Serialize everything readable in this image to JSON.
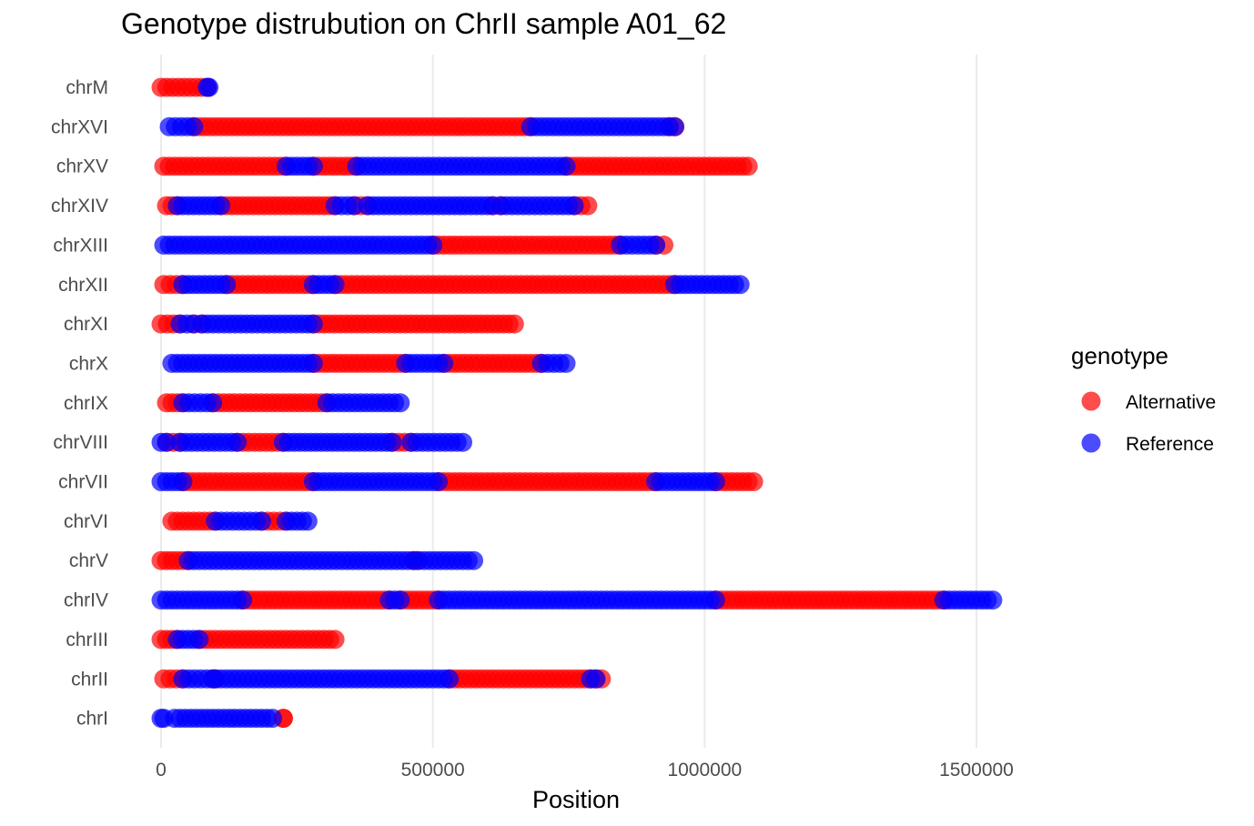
{
  "chart_data": {
    "type": "scatter",
    "title": "Genotype distrubution on ChrII sample A01_62",
    "xlabel": "Position",
    "ylabel": "",
    "xlim": [
      -15000,
      1730000
    ],
    "x_ticks": [
      0,
      500000,
      1000000,
      1500000
    ],
    "x_tick_labels": [
      "0",
      "500000",
      "1000000",
      "1500000"
    ],
    "grid": "vertical",
    "legend": {
      "title": "genotype",
      "placement": "right",
      "entries": [
        {
          "label": "Alternative",
          "color": "#ff0000"
        },
        {
          "label": "Reference",
          "color": "#0000ff"
        }
      ]
    },
    "categories": [
      "chrM",
      "chrXVI",
      "chrXV",
      "chrXIV",
      "chrXIII",
      "chrXII",
      "chrXI",
      "chrX",
      "chrIX",
      "chrVIII",
      "chrVII",
      "chrVI",
      "chrV",
      "chrIV",
      "chrIII",
      "chrII",
      "chrI"
    ],
    "series": [
      {
        "name": "Alternative",
        "color": "#ff0000",
        "segments": [
          {
            "chrom": "chrM",
            "start": 0,
            "end": 85000
          },
          {
            "chrom": "chrXVI",
            "start": 60000,
            "end": 680000
          },
          {
            "chrom": "chrXVI",
            "start": 935000,
            "end": 945000
          },
          {
            "chrom": "chrXV",
            "start": 5000,
            "end": 230000
          },
          {
            "chrom": "chrXV",
            "start": 280000,
            "end": 360000
          },
          {
            "chrom": "chrXV",
            "start": 745000,
            "end": 1080000
          },
          {
            "chrom": "chrXIV",
            "start": 10000,
            "end": 30000
          },
          {
            "chrom": "chrXIV",
            "start": 110000,
            "end": 320000
          },
          {
            "chrom": "chrXIV",
            "start": 355000,
            "end": 380000
          },
          {
            "chrom": "chrXIV",
            "start": 610000,
            "end": 625000
          },
          {
            "chrom": "chrXIV",
            "start": 760000,
            "end": 785000
          },
          {
            "chrom": "chrXIII",
            "start": 500000,
            "end": 845000
          },
          {
            "chrom": "chrXIII",
            "start": 910000,
            "end": 925000
          },
          {
            "chrom": "chrXII",
            "start": 5000,
            "end": 40000
          },
          {
            "chrom": "chrXII",
            "start": 120000,
            "end": 280000
          },
          {
            "chrom": "chrXII",
            "start": 320000,
            "end": 945000
          },
          {
            "chrom": "chrXI",
            "start": 0,
            "end": 35000
          },
          {
            "chrom": "chrXI",
            "start": 60000,
            "end": 75000
          },
          {
            "chrom": "chrXI",
            "start": 280000,
            "end": 650000
          },
          {
            "chrom": "chrX",
            "start": 280000,
            "end": 450000
          },
          {
            "chrom": "chrX",
            "start": 520000,
            "end": 700000
          },
          {
            "chrom": "chrIX",
            "start": 10000,
            "end": 40000
          },
          {
            "chrom": "chrIX",
            "start": 95000,
            "end": 305000
          },
          {
            "chrom": "chrVIII",
            "start": 10000,
            "end": 35000
          },
          {
            "chrom": "chrVIII",
            "start": 140000,
            "end": 225000
          },
          {
            "chrom": "chrVIII",
            "start": 425000,
            "end": 460000
          },
          {
            "chrom": "chrVII",
            "start": 40000,
            "end": 280000
          },
          {
            "chrom": "chrVII",
            "start": 510000,
            "end": 910000
          },
          {
            "chrom": "chrVII",
            "start": 1020000,
            "end": 1090000
          },
          {
            "chrom": "chrVI",
            "start": 20000,
            "end": 100000
          },
          {
            "chrom": "chrVI",
            "start": 185000,
            "end": 230000
          },
          {
            "chrom": "chrV",
            "start": 0,
            "end": 50000
          },
          {
            "chrom": "chrV",
            "start": 465000,
            "end": 470000
          },
          {
            "chrom": "chrIV",
            "start": 150000,
            "end": 420000
          },
          {
            "chrom": "chrIV",
            "start": 440000,
            "end": 510000
          },
          {
            "chrom": "chrIV",
            "start": 1020000,
            "end": 1440000
          },
          {
            "chrom": "chrIII",
            "start": 0,
            "end": 30000
          },
          {
            "chrom": "chrIII",
            "start": 70000,
            "end": 320000
          },
          {
            "chrom": "chrII",
            "start": 5000,
            "end": 40000
          },
          {
            "chrom": "chrII",
            "start": 95000,
            "end": 100000
          },
          {
            "chrom": "chrII",
            "start": 530000,
            "end": 810000
          },
          {
            "chrom": "chrI",
            "start": 225000,
            "end": 225000
          }
        ]
      },
      {
        "name": "Reference",
        "color": "#0000ff",
        "segments": [
          {
            "chrom": "chrM",
            "start": 85000,
            "end": 88000
          },
          {
            "chrom": "chrXVI",
            "start": 15000,
            "end": 60000
          },
          {
            "chrom": "chrXVI",
            "start": 680000,
            "end": 945000
          },
          {
            "chrom": "chrXV",
            "start": 230000,
            "end": 280000
          },
          {
            "chrom": "chrXV",
            "start": 360000,
            "end": 745000
          },
          {
            "chrom": "chrXIV",
            "start": 30000,
            "end": 110000
          },
          {
            "chrom": "chrXIV",
            "start": 320000,
            "end": 355000
          },
          {
            "chrom": "chrXIV",
            "start": 380000,
            "end": 610000
          },
          {
            "chrom": "chrXIV",
            "start": 625000,
            "end": 760000
          },
          {
            "chrom": "chrXIII",
            "start": 5000,
            "end": 500000
          },
          {
            "chrom": "chrXIII",
            "start": 845000,
            "end": 910000
          },
          {
            "chrom": "chrXII",
            "start": 40000,
            "end": 120000
          },
          {
            "chrom": "chrXII",
            "start": 280000,
            "end": 320000
          },
          {
            "chrom": "chrXII",
            "start": 945000,
            "end": 1065000
          },
          {
            "chrom": "chrXI",
            "start": 35000,
            "end": 60000
          },
          {
            "chrom": "chrXI",
            "start": 75000,
            "end": 280000
          },
          {
            "chrom": "chrX",
            "start": 20000,
            "end": 280000
          },
          {
            "chrom": "chrX",
            "start": 450000,
            "end": 520000
          },
          {
            "chrom": "chrX",
            "start": 700000,
            "end": 745000
          },
          {
            "chrom": "chrIX",
            "start": 40000,
            "end": 95000
          },
          {
            "chrom": "chrIX",
            "start": 305000,
            "end": 440000
          },
          {
            "chrom": "chrVIII",
            "start": 0,
            "end": 10000
          },
          {
            "chrom": "chrVIII",
            "start": 35000,
            "end": 140000
          },
          {
            "chrom": "chrVIII",
            "start": 225000,
            "end": 425000
          },
          {
            "chrom": "chrVIII",
            "start": 460000,
            "end": 555000
          },
          {
            "chrom": "chrVII",
            "start": 0,
            "end": 40000
          },
          {
            "chrom": "chrVII",
            "start": 280000,
            "end": 510000
          },
          {
            "chrom": "chrVII",
            "start": 910000,
            "end": 1020000
          },
          {
            "chrom": "chrVI",
            "start": 100000,
            "end": 185000
          },
          {
            "chrom": "chrVI",
            "start": 230000,
            "end": 270000
          },
          {
            "chrom": "chrV",
            "start": 50000,
            "end": 575000
          },
          {
            "chrom": "chrIV",
            "start": 0,
            "end": 150000
          },
          {
            "chrom": "chrIV",
            "start": 420000,
            "end": 440000
          },
          {
            "chrom": "chrIV",
            "start": 510000,
            "end": 1020000
          },
          {
            "chrom": "chrIV",
            "start": 1440000,
            "end": 1530000
          },
          {
            "chrom": "chrIII",
            "start": 30000,
            "end": 70000
          },
          {
            "chrom": "chrII",
            "start": 40000,
            "end": 95000
          },
          {
            "chrom": "chrII",
            "start": 100000,
            "end": 530000
          },
          {
            "chrom": "chrII",
            "start": 790000,
            "end": 800000
          },
          {
            "chrom": "chrI",
            "start": 0,
            "end": 5000
          },
          {
            "chrom": "chrI",
            "start": 25000,
            "end": 205000
          }
        ]
      }
    ]
  }
}
